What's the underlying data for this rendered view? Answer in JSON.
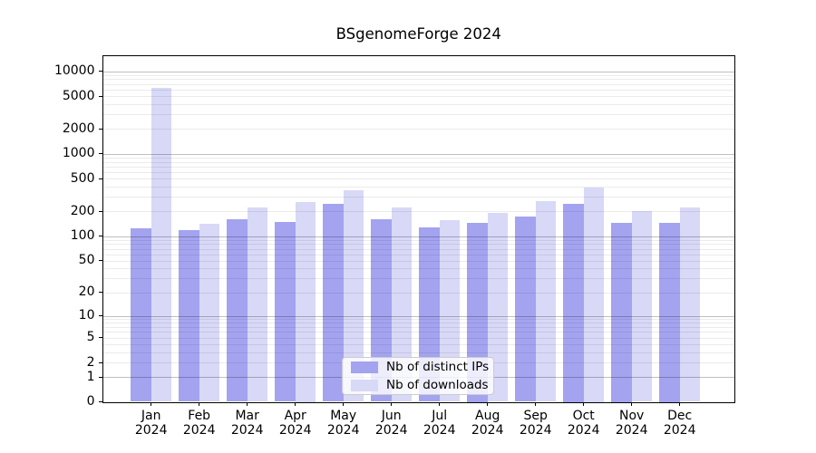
{
  "title": "BSgenomeForge 2024",
  "colors": {
    "ips_bar": "#a3a3f0",
    "downloads_bar": "#d8d8f7",
    "grid_major": "rgba(0,0,0,0.25)",
    "grid_minor": "rgba(0,0,0,0.08)",
    "axis_frame": "#000000",
    "background": "#ffffff",
    "legend_border": "#cccccc"
  },
  "legend": {
    "items": [
      {
        "label": "Nb of distinct IPs",
        "swatch_color": "#a3a3f0"
      },
      {
        "label": "Nb of downloads",
        "swatch_color": "#d8d8f7"
      }
    ]
  },
  "chart_data": {
    "type": "bar",
    "title": "BSgenomeForge 2024",
    "categories": [
      "Jan",
      "Feb",
      "Mar",
      "Apr",
      "May",
      "Jun",
      "Jul",
      "Aug",
      "Sep",
      "Oct",
      "Nov",
      "Dec"
    ],
    "category_year": "2024",
    "series": [
      {
        "name": "Nb of distinct IPs",
        "values": [
          125,
          118,
          160,
          150,
          245,
          160,
          128,
          147,
          175,
          250,
          145,
          145
        ]
      },
      {
        "name": "Nb of downloads",
        "values": [
          6300,
          140,
          225,
          260,
          360,
          225,
          155,
          190,
          265,
          390,
          200,
          225
        ]
      }
    ],
    "yscale": "log1p",
    "yticks": [
      0,
      1,
      2,
      5,
      10,
      20,
      50,
      100,
      200,
      500,
      1000,
      2000,
      5000,
      10000
    ],
    "ylim": [
      0,
      15200
    ],
    "grid": true,
    "legend_position": "lower center",
    "xlabel": "",
    "ylabel": ""
  }
}
